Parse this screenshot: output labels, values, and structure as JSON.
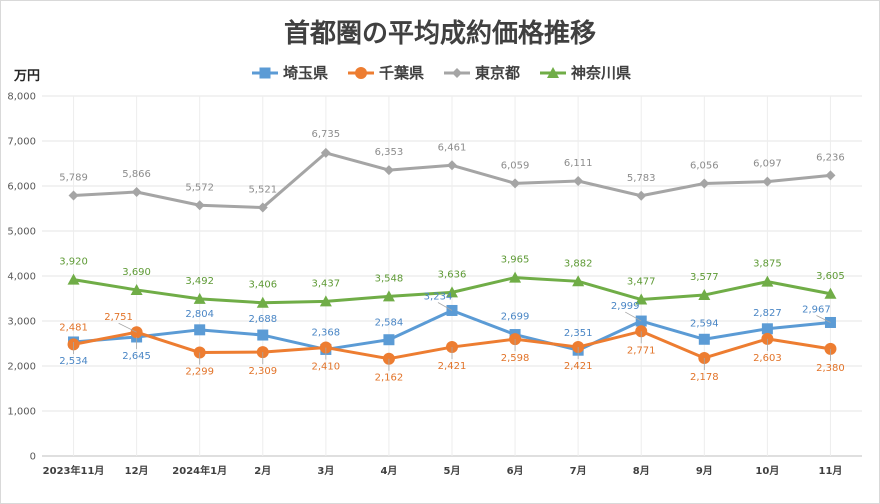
{
  "chart_data": {
    "type": "line",
    "title": "首都圏の平均成約価格推移",
    "ylabel": "万円",
    "xlabel": "",
    "ylim": [
      0,
      8000
    ],
    "yticks": [
      0,
      1000,
      2000,
      3000,
      4000,
      5000,
      6000,
      7000,
      8000
    ],
    "ytick_labels": [
      "0",
      "1,000",
      "2,000",
      "3,000",
      "4,000",
      "5,000",
      "6,000",
      "7,000",
      "8,000"
    ],
    "categories": [
      "2023年11月",
      "12月",
      "2024年1月",
      "2月",
      "3月",
      "4月",
      "5月",
      "6月",
      "7月",
      "8月",
      "9月",
      "10月",
      "11月"
    ],
    "grid": true,
    "legend_position": "top",
    "series": [
      {
        "name": "埼玉県",
        "color": "#5b9bd5",
        "label_color": "#4a86c5",
        "marker": "square",
        "values": [
          2534,
          2645,
          2804,
          2688,
          2368,
          2584,
          3234,
          2699,
          2351,
          2999,
          2594,
          2827,
          2967
        ],
        "labels": [
          "2,534",
          "2,645",
          "2,804",
          "2,688",
          "2,368",
          "2,584",
          "3,234",
          "2,699",
          "2,351",
          "2,999",
          "2,594",
          "2,827",
          "2,967"
        ]
      },
      {
        "name": "千葉県",
        "color": "#ed7d31",
        "label_color": "#e2742a",
        "marker": "circle",
        "values": [
          2481,
          2751,
          2299,
          2309,
          2410,
          2162,
          2421,
          2598,
          2421,
          2771,
          2178,
          2603,
          2380
        ],
        "labels": [
          "2,481",
          "2,751",
          "2,299",
          "2,309",
          "2,410",
          "2,162",
          "2,421",
          "2,598",
          "2,421",
          "2,771",
          "2,178",
          "2,603",
          "2,380"
        ]
      },
      {
        "name": "東京都",
        "color": "#a5a5a5",
        "label_color": "#8c8c8c",
        "marker": "diamond",
        "values": [
          5789,
          5866,
          5572,
          5521,
          6735,
          6353,
          6461,
          6059,
          6111,
          5783,
          6056,
          6097,
          6236
        ],
        "labels": [
          "5,789",
          "5,866",
          "5,572",
          "5,521",
          "6,735",
          "6,353",
          "6,461",
          "6,059",
          "6,111",
          "5,783",
          "6,056",
          "6,097",
          "6,236"
        ]
      },
      {
        "name": "神奈川県",
        "color": "#70ad47",
        "label_color": "#5e9a35",
        "marker": "triangle",
        "values": [
          3920,
          3690,
          3492,
          3406,
          3437,
          3548,
          3636,
          3965,
          3882,
          3477,
          3577,
          3875,
          3605
        ],
        "labels": [
          "3,920",
          "3,690",
          "3,492",
          "3,406",
          "3,437",
          "3,548",
          "3,636",
          "3,965",
          "3,882",
          "3,477",
          "3,577",
          "3,875",
          "3,605"
        ]
      }
    ]
  }
}
